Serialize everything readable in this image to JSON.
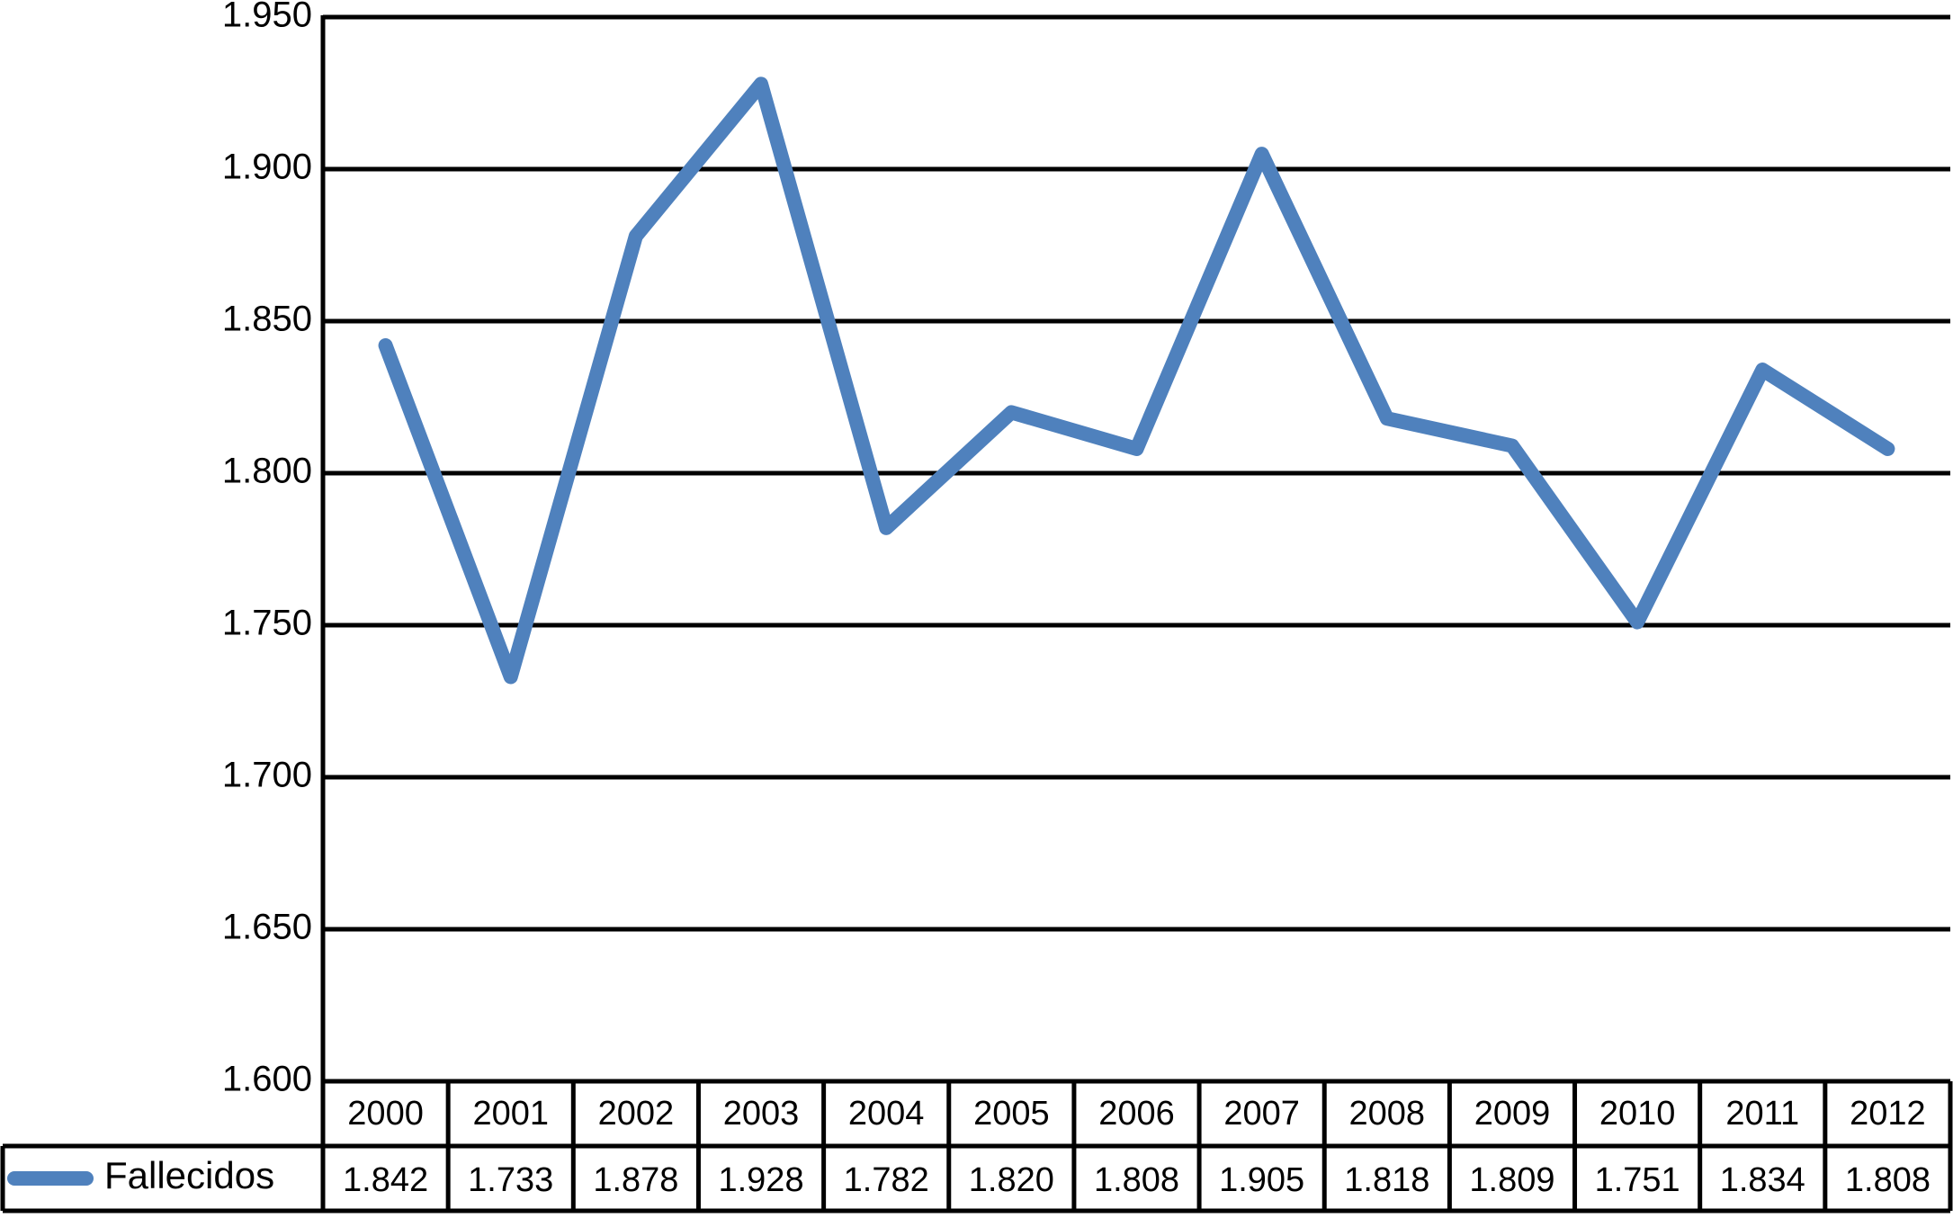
{
  "chart_data": {
    "type": "line",
    "categories": [
      "2000",
      "2001",
      "2002",
      "2003",
      "2004",
      "2005",
      "2006",
      "2007",
      "2008",
      "2009",
      "2010",
      "2011",
      "2012"
    ],
    "series": [
      {
        "name": "Fallecidos",
        "color": "#4f81bd",
        "values": [
          1842,
          1733,
          1878,
          1928,
          1782,
          1820,
          1808,
          1905,
          1818,
          1809,
          1751,
          1834,
          1808
        ],
        "value_labels": [
          "1.842",
          "1.733",
          "1.878",
          "1.928",
          "1.782",
          "1.820",
          "1.808",
          "1.905",
          "1.818",
          "1.809",
          "1.751",
          "1.834",
          "1.808"
        ]
      }
    ],
    "ylim": [
      1600,
      1950
    ],
    "yticks": [
      {
        "value": 1600,
        "label": "1.600"
      },
      {
        "value": 1650,
        "label": "1.650"
      },
      {
        "value": 1700,
        "label": "1.700"
      },
      {
        "value": 1750,
        "label": "1.750"
      },
      {
        "value": 1800,
        "label": "1.800"
      },
      {
        "value": 1850,
        "label": "1.850"
      },
      {
        "value": 1900,
        "label": "1.900"
      },
      {
        "value": 1950,
        "label": "1.950"
      }
    ],
    "grid": true
  }
}
